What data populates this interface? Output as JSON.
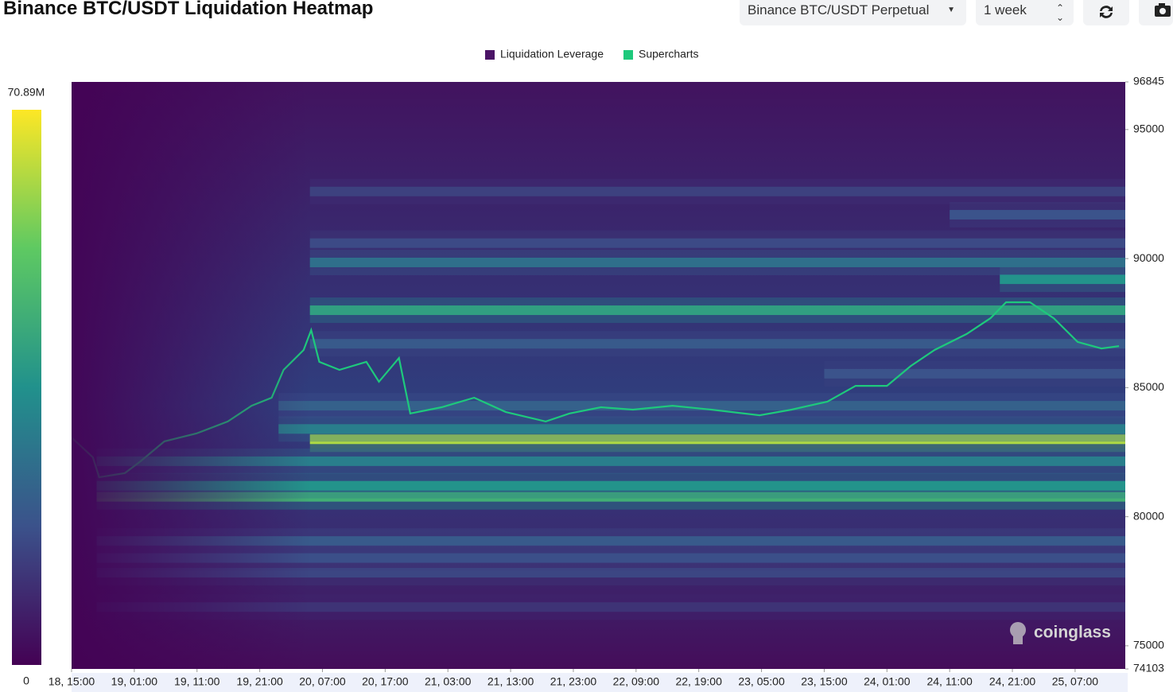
{
  "header": {
    "title": "Binance BTC/USDT Liquidation Heatmap",
    "pair_select": "Binance BTC/USDT Perpetual",
    "range_select": "1 week"
  },
  "chart_data": {
    "type": "heatmap",
    "legend": [
      {
        "name": "Liquidation Leverage",
        "color": "#4b1466"
      },
      {
        "name": "Supercharts",
        "color": "#1ec97c"
      }
    ],
    "watermark": "coinglass",
    "xlim": [
      0,
      168
    ],
    "xticks": [
      {
        "value": 0,
        "label": "18, 15:00"
      },
      {
        "value": 10,
        "label": "19, 01:00"
      },
      {
        "value": 20,
        "label": "19, 11:00"
      },
      {
        "value": 30,
        "label": "19, 21:00"
      },
      {
        "value": 40,
        "label": "20, 07:00"
      },
      {
        "value": 50,
        "label": "20, 17:00"
      },
      {
        "value": 60,
        "label": "21, 03:00"
      },
      {
        "value": 70,
        "label": "21, 13:00"
      },
      {
        "value": 80,
        "label": "21, 23:00"
      },
      {
        "value": 90,
        "label": "22, 09:00"
      },
      {
        "value": 100,
        "label": "22, 19:00"
      },
      {
        "value": 110,
        "label": "23, 05:00"
      },
      {
        "value": 120,
        "label": "23, 15:00"
      },
      {
        "value": 130,
        "label": "24, 01:00"
      },
      {
        "value": 140,
        "label": "24, 11:00"
      },
      {
        "value": 150,
        "label": "24, 21:00"
      },
      {
        "value": 160,
        "label": "25, 07:00"
      }
    ],
    "ylim": [
      74103,
      96845
    ],
    "yticks": [
      74103,
      75000,
      80000,
      85000,
      90000,
      95000,
      96845
    ],
    "colorbar": {
      "lim": [
        0,
        70890000
      ],
      "ticks": [
        0,
        {
          "value": 70890000,
          "label": "70.89M"
        }
      ]
    },
    "bands": {
      "y": [
        83000,
        80770,
        81200,
        88000,
        89200,
        83400,
        89850,
        91700,
        92600,
        79060,
        77830,
        82150,
        84300,
        85540,
        90600,
        86700,
        78400,
        76500
      ],
      "x_start": [
        38,
        4,
        4,
        38,
        148,
        33,
        38,
        140,
        38,
        4,
        4,
        4,
        33,
        120,
        38,
        38,
        4,
        4
      ],
      "values": [
        62000000,
        45000000,
        36000000,
        40000000,
        36000000,
        30000000,
        26000000,
        18000000,
        14000000,
        20000000,
        15000000,
        30000000,
        22000000,
        18000000,
        16000000,
        20000000,
        17000000,
        11000000
      ]
    },
    "series": [
      {
        "name": "Supercharts",
        "color": "#1ec97c",
        "x": [
          0,
          3.4,
          4.4,
          8.5,
          11,
          14.8,
          19.9,
          24.9,
          28.7,
          31.9,
          33.8,
          37,
          38.2,
          39.5,
          42.7,
          47,
          49,
          52.2,
          54,
          59,
          64.2,
          69.2,
          75.6,
          79.4,
          84.4,
          89.5,
          95.8,
          102,
          109.7,
          114.8,
          120.5,
          125,
          130,
          133.8,
          137.6,
          142.7,
          146.5,
          149,
          152.8,
          156.6,
          160.4,
          164.2,
          167
        ],
        "values": [
          83070,
          82300,
          81530,
          81690,
          82150,
          82920,
          83225,
          83690,
          84300,
          84610,
          85690,
          86460,
          87230,
          86000,
          85690,
          86000,
          85230,
          86150,
          84000,
          84240,
          84610,
          84060,
          83690,
          84000,
          84240,
          84150,
          84300,
          84150,
          83930,
          84150,
          84460,
          85070,
          85070,
          85840,
          86460,
          87080,
          87690,
          88310,
          88310,
          87690,
          86770,
          86520,
          86610
        ]
      }
    ]
  }
}
